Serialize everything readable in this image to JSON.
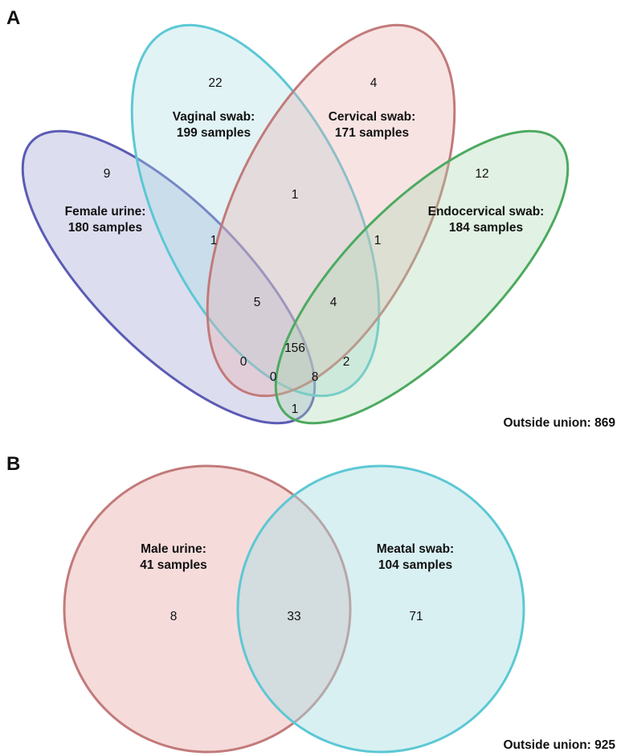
{
  "panel_a": {
    "letter": "A",
    "sets": [
      {
        "name_line1": "Female urine:",
        "name_line2": "180 samples",
        "stroke": "#5b5bb5",
        "fill": "#9c9fcf"
      },
      {
        "name_line1": "Vaginal swab:",
        "name_line2": "199 samples",
        "stroke": "#5cc8d4",
        "fill": "#a8dde2"
      },
      {
        "name_line1": "Cervical swab:",
        "name_line2": "171 samples",
        "stroke": "#c27a7a",
        "fill": "#ebb0b0"
      },
      {
        "name_line1": "Endocervical swab:",
        "name_line2": "184 samples",
        "stroke": "#4caa60",
        "fill": "#a8d8b0"
      }
    ],
    "region_counts": {
      "urine_only": "9",
      "vaginal_only": "22",
      "cervical_only": "4",
      "endocervical_only": "12",
      "urine_vaginal": "1",
      "vaginal_cervical": "1",
      "cervical_endocervical": "1",
      "urine_vaginal_cervical": "5",
      "vaginal_cervical_endocervical": "4",
      "all_four": "156",
      "urine_cervical": "0",
      "urine_cervical_endocervical": "0",
      "urine_vaginal_endocervical": "8",
      "vaginal_endocervical": "2",
      "urine_endocervical": "1"
    },
    "outside_union": "Outside union: 869"
  },
  "panel_b": {
    "letter": "B",
    "sets": [
      {
        "name_line1": "Male urine:",
        "name_line2": "41 samples",
        "stroke": "#c27a7a",
        "fill": "#ebb0b0"
      },
      {
        "name_line1": "Meatal swab:",
        "name_line2": "104 samples",
        "stroke": "#5cc8d4",
        "fill": "#a8dde2"
      }
    ],
    "region_counts": {
      "male_urine_only": "8",
      "both": "33",
      "meatal_only": "71"
    },
    "outside_union": "Outside union: 925"
  }
}
